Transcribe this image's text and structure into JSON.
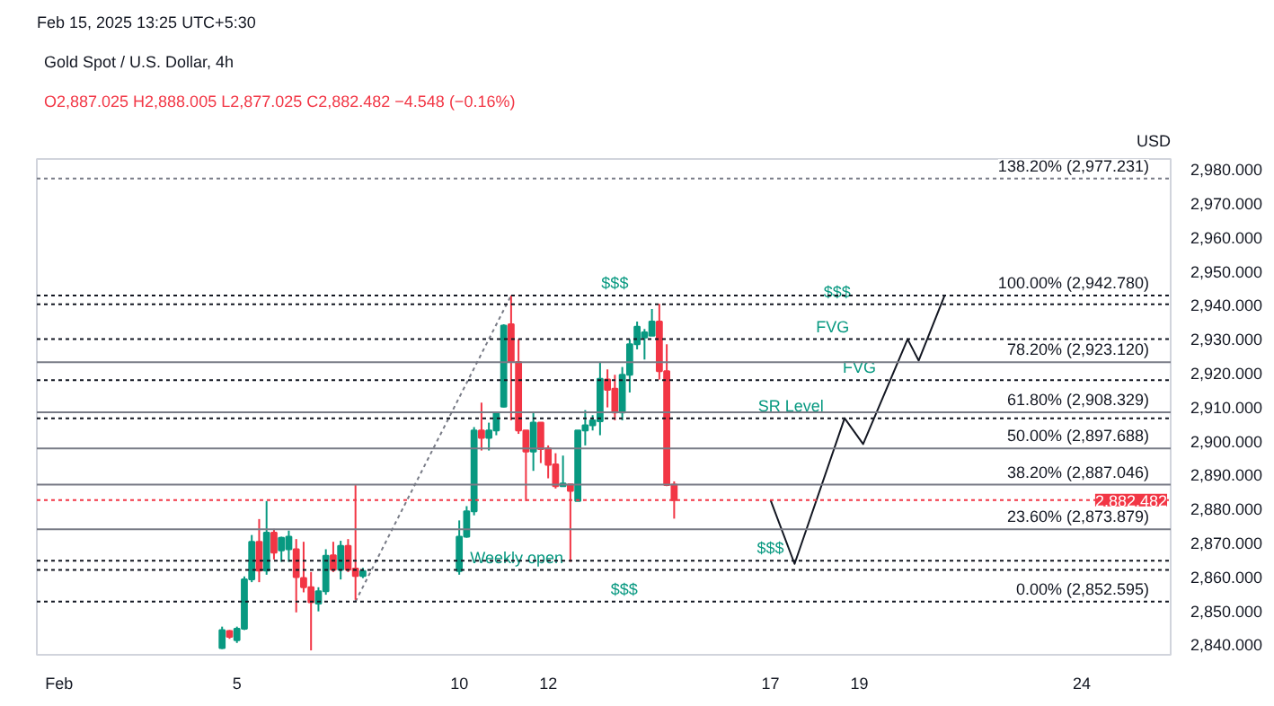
{
  "chart_data": {
    "type": "candlestick",
    "title": "Gold Spot / U.S. Dollar, 4h",
    "subtitle": "Feb 15, 2025 13:25 UTC+5:30",
    "x": [
      "2025-02-04T16:00",
      "2025-02-04T20:00",
      "2025-02-05T00:00",
      "2025-02-05T04:00",
      "2025-02-05T08:00",
      "2025-02-05T12:00",
      "2025-02-05T16:00",
      "2025-02-05T20:00",
      "2025-02-06T00:00",
      "2025-02-06T04:00",
      "2025-02-06T08:00",
      "2025-02-06T12:00",
      "2025-02-06T16:00",
      "2025-02-06T20:00",
      "2025-02-07T00:00",
      "2025-02-07T04:00",
      "2025-02-07T08:00",
      "2025-02-07T12:00",
      "2025-02-07T16:00",
      "2025-02-07T20:00",
      "2025-02-10T00:00",
      "2025-02-10T04:00",
      "2025-02-10T08:00",
      "2025-02-10T12:00",
      "2025-02-10T16:00",
      "2025-02-10T20:00",
      "2025-02-11T00:00",
      "2025-02-11T04:00",
      "2025-02-11T08:00",
      "2025-02-11T12:00",
      "2025-02-11T16:00",
      "2025-02-11T20:00",
      "2025-02-12T00:00",
      "2025-02-12T04:00",
      "2025-02-12T08:00",
      "2025-02-12T12:00",
      "2025-02-12T16:00",
      "2025-02-12T20:00",
      "2025-02-13T00:00",
      "2025-02-13T04:00",
      "2025-02-13T08:00",
      "2025-02-13T12:00",
      "2025-02-13T16:00",
      "2025-02-13T20:00",
      "2025-02-14T00:00",
      "2025-02-14T04:00",
      "2025-02-14T08:00",
      "2025-02-14T12:00",
      "2025-02-14T16:00",
      "2025-02-14T20:00"
    ],
    "ohlc": [
      [
        2838.9,
        2845.2,
        2838.6,
        2844.2
      ],
      [
        2843.9,
        2844.2,
        2841.6,
        2842.2
      ],
      [
        2841.2,
        2845.2,
        2840.4,
        2844.6
      ],
      [
        2844.6,
        2860.0,
        2844.2,
        2859.1
      ],
      [
        2859.1,
        2872.2,
        2858.3,
        2870.2
      ],
      [
        2870.2,
        2876.9,
        2858.3,
        2861.7
      ],
      [
        2861.7,
        2882.2,
        2860.5,
        2872.9
      ],
      [
        2872.9,
        2874.0,
        2865.0,
        2867.0
      ],
      [
        2867.7,
        2871.7,
        2864.3,
        2871.4
      ],
      [
        2868.0,
        2873.5,
        2864.3,
        2871.7
      ],
      [
        2868.0,
        2871.0,
        2849.4,
        2859.8
      ],
      [
        2859.5,
        2870.2,
        2855.3,
        2856.8
      ],
      [
        2856.8,
        2861.3,
        2838.2,
        2852.4
      ],
      [
        2852.0,
        2856.8,
        2849.7,
        2855.6
      ],
      [
        2855.6,
        2868.0,
        2854.6,
        2866.1
      ],
      [
        2866.2,
        2870.2,
        2861.3,
        2862.0
      ],
      [
        2862.0,
        2870.5,
        2859.1,
        2869.0
      ],
      [
        2869.0,
        2871.0,
        2861.3,
        2862.0
      ],
      [
        2862.3,
        2886.9,
        2853.1,
        2860.1
      ],
      [
        2860.1,
        2862.5,
        2859.5,
        2861.6
      ],
      [
        2861.6,
        2876.5,
        2860.5,
        2871.7
      ],
      [
        2871.7,
        2880.7,
        2871.4,
        2879.2
      ],
      [
        2879.2,
        2904.0,
        2878.0,
        2903.0
      ],
      [
        2903.0,
        2911.2,
        2897.1,
        2900.8
      ],
      [
        2900.8,
        2905.3,
        2897.1,
        2903.0
      ],
      [
        2903.0,
        2908.3,
        2901.6,
        2908.3
      ],
      [
        2910.0,
        2934.3,
        2909.8,
        2933.9
      ],
      [
        2934.3,
        2942.78,
        2906.0,
        2923.2
      ],
      [
        2923.2,
        2929.9,
        2902.0,
        2903.0
      ],
      [
        2903.0,
        2903.0,
        2882.2,
        2896.8
      ],
      [
        2896.8,
        2908.3,
        2891.1,
        2905.3
      ],
      [
        2905.3,
        2905.3,
        2893.4,
        2897.5
      ],
      [
        2897.8,
        2898.6,
        2888.9,
        2892.9
      ],
      [
        2893.0,
        2896.3,
        2885.9,
        2886.6
      ],
      [
        2886.6,
        2895.6,
        2886.6,
        2887.4
      ],
      [
        2887.1,
        2887.1,
        2864.3,
        2885.2
      ],
      [
        2882.2,
        2903.0,
        2882.2,
        2903.0
      ],
      [
        2903.0,
        2909.0,
        2898.6,
        2904.5
      ],
      [
        2904.5,
        2907.5,
        2903.0,
        2906.0
      ],
      [
        2905.7,
        2923.2,
        2901.6,
        2918.2
      ],
      [
        2918.0,
        2921.0,
        2909.8,
        2915.0
      ],
      [
        2915.3,
        2919.4,
        2906.0,
        2908.3
      ],
      [
        2908.3,
        2921.7,
        2906.0,
        2919.4
      ],
      [
        2919.4,
        2929.9,
        2914.2,
        2928.4
      ],
      [
        2928.4,
        2935.1,
        2926.9,
        2933.6
      ],
      [
        2930.4,
        2932.9,
        2923.9,
        2931.9
      ],
      [
        2930.9,
        2938.8,
        2930.9,
        2935.1
      ],
      [
        2935.1,
        2940.3,
        2918.0,
        2920.5
      ],
      [
        2920.5,
        2928.4,
        2886.6,
        2886.9
      ],
      [
        2887.025,
        2888.005,
        2877.025,
        2882.482
      ]
    ],
    "colors": [
      "#089981",
      "#f23645",
      "#089981",
      "#089981",
      "#089981",
      "#f23645",
      "#089981",
      "#f23645",
      "#089981",
      "#089981",
      "#f23645",
      "#f23645",
      "#f23645",
      "#089981",
      "#089981",
      "#f23645",
      "#089981",
      "#f23645",
      "#f23645",
      "#089981",
      "#089981",
      "#089981",
      "#089981",
      "#f23645",
      "#089981",
      "#089981",
      "#089981",
      "#f23645",
      "#f23645",
      "#f23645",
      "#089981",
      "#f23645",
      "#f23645",
      "#f23645",
      "#089981",
      "#f23645",
      "#089981",
      "#089981",
      "#089981",
      "#089981",
      "#f23645",
      "#f23645",
      "#089981",
      "#089981",
      "#089981",
      "#089981",
      "#089981",
      "#f23645",
      "#f23645",
      "#f23645"
    ],
    "series": [
      {
        "type": "line",
        "x": [
          "2025-02-07T16:00",
          "2025-02-11T04:00"
        ],
        "values": [
          2852.6,
          2942.8
        ],
        "color": "#787b86",
        "line_style": "dotted"
      },
      {
        "type": "line",
        "x": [
          "2025-02-17T00:00",
          "2025-02-17T13:00",
          "2025-02-18T16:00",
          "2025-02-19T02:00",
          "2025-02-20T02:00",
          "2025-02-20T08:00",
          "2025-02-20T22:00"
        ],
        "values": [
          2882.5,
          2863.7,
          2906.6,
          2899.0,
          2929.9,
          2923.6,
          2942.8
        ],
        "color": "#131722",
        "line_style": "solid"
      }
    ],
    "xlim": [
      "2025-01-31T12:00",
      "2025-02-26T00:00"
    ],
    "ylim": [
      2836.9,
      2983
    ],
    "xticks": [
      {
        "value": "2025-02-01",
        "label": "Feb"
      },
      {
        "value": "2025-02-05",
        "label": "5"
      },
      {
        "value": "2025-02-10",
        "label": "10"
      },
      {
        "value": "2025-02-12",
        "label": "12"
      },
      {
        "value": "2025-02-17",
        "label": "17"
      },
      {
        "value": "2025-02-19",
        "label": "19"
      },
      {
        "value": "2025-02-24",
        "label": "24"
      }
    ],
    "yticks": [
      {
        "value": 2840,
        "label": "2,840.000"
      },
      {
        "value": 2850,
        "label": "2,850.000"
      },
      {
        "value": 2860,
        "label": "2,860.000"
      },
      {
        "value": 2870,
        "label": "2,870.000"
      },
      {
        "value": 2880,
        "label": "2,880.000"
      },
      {
        "value": 2890,
        "label": "2,890.000"
      },
      {
        "value": 2900,
        "label": "2,900.000"
      },
      {
        "value": 2910,
        "label": "2,910.000"
      },
      {
        "value": 2920,
        "label": "2,920.000"
      },
      {
        "value": 2930,
        "label": "2,930.000"
      },
      {
        "value": 2940,
        "label": "2,940.000"
      },
      {
        "value": 2950,
        "label": "2,950.000"
      },
      {
        "value": 2960,
        "label": "2,960.000"
      },
      {
        "value": 2970,
        "label": "2,970.000"
      },
      {
        "value": 2980,
        "label": "2,980.000"
      }
    ],
    "ref_lines": [
      {
        "axis": "y",
        "value": 2977.231,
        "label": "138.20% (2,977.231)",
        "color": "#787b86",
        "line_style": "dotted"
      },
      {
        "axis": "y",
        "value": 2942.78,
        "label": "100.00% (2,942.780)",
        "color": "#131722",
        "line_style": "dotted"
      },
      {
        "axis": "y",
        "value": 2923.12,
        "label": "78.20% (2,923.120)",
        "color": "#787b86",
        "line_style": "solid"
      },
      {
        "axis": "y",
        "value": 2908.329,
        "label": "61.80% (2,908.329)",
        "color": "#787b86",
        "line_style": "solid"
      },
      {
        "axis": "y",
        "value": 2897.688,
        "label": "50.00% (2,897.688)",
        "color": "#787b86",
        "line_style": "solid"
      },
      {
        "axis": "y",
        "value": 2887.046,
        "label": "38.20% (2,887.046)",
        "color": "#787b86",
        "line_style": "solid"
      },
      {
        "axis": "y",
        "value": 2873.879,
        "label": "23.60% (2,873.879)",
        "color": "#787b86",
        "line_style": "solid"
      },
      {
        "axis": "y",
        "value": 2852.595,
        "label": "0.00% (2,852.595)",
        "color": "#131722",
        "line_style": "dotted"
      },
      {
        "axis": "y",
        "value": 2940.2,
        "color": "#131722",
        "line_style": "dotted"
      },
      {
        "axis": "y",
        "value": 2929.9,
        "color": "#131722",
        "line_style": "dotted"
      },
      {
        "axis": "y",
        "value": 2917.8,
        "color": "#131722",
        "line_style": "dotted"
      },
      {
        "axis": "y",
        "value": 2906.6,
        "color": "#131722",
        "line_style": "dotted"
      },
      {
        "axis": "y",
        "value": 2864.6,
        "color": "#131722",
        "line_style": "dotted"
      },
      {
        "axis": "y",
        "value": 2861.9,
        "color": "#131722",
        "line_style": "dotted"
      },
      {
        "axis": "y",
        "value": 2882.482,
        "label": "2,882.482",
        "color": "#f23645",
        "line_style": "dotted"
      }
    ],
    "annotations": [
      "O2,887.025 H2,888.005 L2,877.025 C2,882.482 −4.548 (−0.16%)",
      "USD",
      {
        "text": "$$$",
        "x": "2025-02-13T12:00",
        "y": 2942.78
      },
      {
        "text": "$$$",
        "x": "2025-02-18T12:00",
        "y": 2940.2
      },
      {
        "text": "FVG",
        "x": "2025-02-18T09:30",
        "y": 2929.9
      },
      {
        "text": "FVG",
        "x": "2025-02-19T00:00",
        "y": 2917.8
      },
      {
        "text": "SR Level",
        "x": "2025-02-17T11:00",
        "y": 2906.6
      },
      {
        "text": "$$$",
        "x": "2025-02-17T00:00",
        "y": 2864.6
      },
      {
        "text": "Weekly open",
        "x": "2025-02-11T07:00",
        "y": 2861.9
      },
      {
        "text": "$$$",
        "x": "2025-02-13T17:00",
        "y": 2852.595
      }
    ],
    "grid": false
  }
}
